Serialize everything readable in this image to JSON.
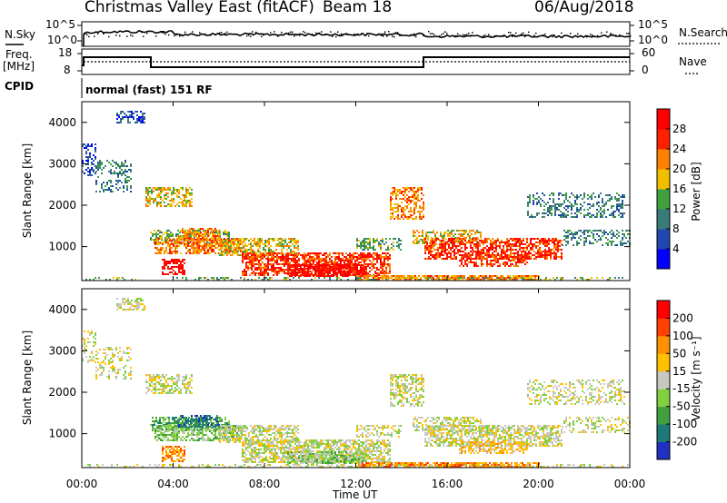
{
  "header": {
    "station": "Christmas Valley East (fitACF)",
    "beam": "Beam 18",
    "date": "06/Aug/2018"
  },
  "panels": {
    "nsky": {
      "label": "N.Sky",
      "ticks_left": [
        "10^5",
        "10^0"
      ],
      "ticks_right": [
        "10^5",
        "10^0"
      ],
      "right_label": "N.Search"
    },
    "freq": {
      "label": "Freq.",
      "unit": "[MHz]",
      "ticks_left": [
        "18",
        "8"
      ],
      "ticks_right": [
        "60",
        "0"
      ],
      "right_label": "Nave"
    },
    "cpid": {
      "label": "CPID",
      "mode": "normal (fast) 151 RF"
    }
  },
  "chart_data": [
    {
      "type": "heatmap",
      "name": "power",
      "ylabel": "Slant Range [km]",
      "ylim": [
        180,
        4500
      ],
      "yticks": [
        "1000",
        "2000",
        "3000",
        "4000"
      ],
      "colorbar_label": "Power [dB]",
      "colorbar_ticks": [
        "4",
        "8",
        "12",
        "16",
        "20",
        "24",
        "28"
      ],
      "colors": [
        "#0000ff",
        "#2048b0",
        "#3a7a78",
        "#40a040",
        "#f0c000",
        "#ff8000",
        "#ff2000",
        "#ff0000"
      ]
    },
    {
      "type": "heatmap",
      "name": "velocity",
      "ylabel": "Slant Range [km]",
      "ylim": [
        180,
        4500
      ],
      "yticks": [
        "1000",
        "2000",
        "3000",
        "4000"
      ],
      "colorbar_label": "Velocity [m s⁻¹]",
      "colorbar_ticks": [
        "200",
        "100",
        "50",
        "15",
        "-15",
        "-50",
        "-100",
        "-200"
      ],
      "colors": [
        "#2030c0",
        "#1e7a78",
        "#40a040",
        "#80d040",
        "#c8c8c0",
        "#ffc000",
        "#ff9000",
        "#ff4000",
        "#ff0000"
      ]
    }
  ],
  "xaxis": {
    "ticks": [
      "00:00",
      "04:00",
      "08:00",
      "12:00",
      "16:00",
      "20:00",
      "00:00"
    ],
    "label": "Time UT"
  }
}
